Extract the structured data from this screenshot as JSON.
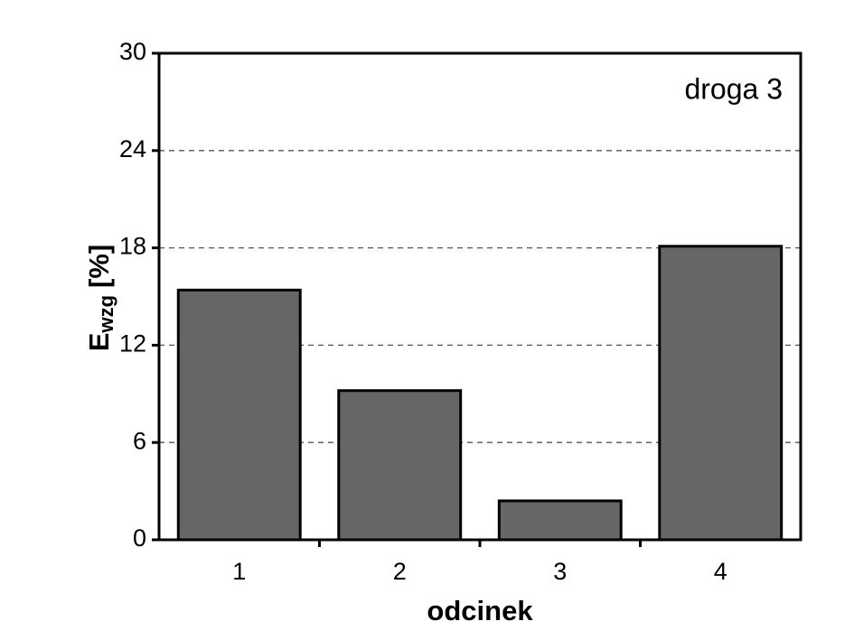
{
  "chart_data": {
    "type": "bar",
    "annotation": "droga 3",
    "xlabel": "odcinek",
    "ylabel": "E",
    "ylabel_sub": "wzg",
    "ylabel_unit": "[%]",
    "categories": [
      "1",
      "2",
      "3",
      "4"
    ],
    "values": [
      15.4,
      9.2,
      2.4,
      18.1
    ],
    "color": "#666666",
    "ylim": [
      0,
      30
    ],
    "yticks": [
      0,
      6,
      12,
      18,
      24,
      30
    ],
    "grid": true
  }
}
